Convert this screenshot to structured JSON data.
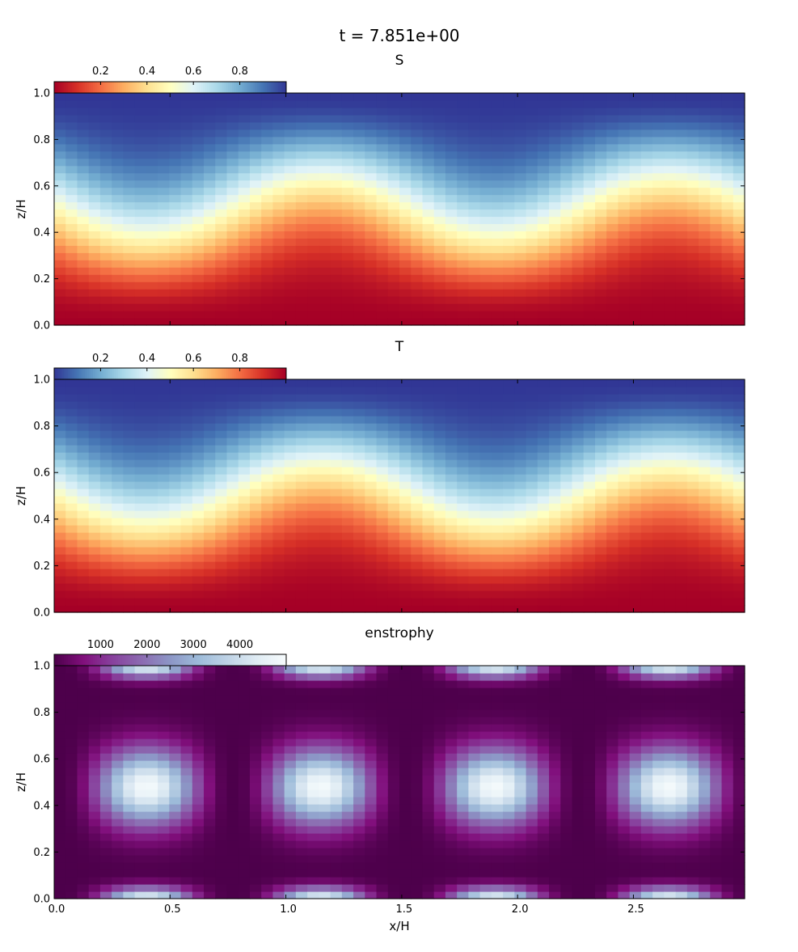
{
  "figure": {
    "suptitle": "t = 7.851e+00"
  },
  "chart_data": [
    {
      "type": "heatmap",
      "title": "S",
      "xlabel": "",
      "ylabel": "z/H",
      "xlim": [
        0,
        2.98
      ],
      "ylim": [
        0,
        1
      ],
      "field": "S",
      "colormap": "RdYlBu",
      "colormap_colors": [
        "#a50026",
        "#d73027",
        "#f46d43",
        "#fdae61",
        "#fee090",
        "#ffffbf",
        "#e0f3f8",
        "#abd9e9",
        "#74add1",
        "#4575b4",
        "#313695"
      ],
      "value_range": [
        0,
        1
      ],
      "grid_nx": 60,
      "grid_nz": 32,
      "flow_model": {
        "wavelength_x": 1.5,
        "phase_x": 0.4,
        "amplitude": 0.13
      },
      "colorbar": {
        "ticks": [
          0.2,
          0.4,
          0.6,
          0.8
        ],
        "tick_labels": [
          "0.2",
          "0.4",
          "0.6",
          "0.8"
        ],
        "range": [
          0,
          1
        ]
      },
      "yticks": [
        0,
        0.2,
        0.4,
        0.6,
        0.8,
        1.0
      ],
      "ytick_labels": [
        "0.0",
        "0.2",
        "0.4",
        "0.6",
        "0.8",
        "1.0"
      ],
      "xticks": [
        0,
        0.5,
        1.0,
        1.5,
        2.0,
        2.5
      ],
      "xtick_labels": []
    },
    {
      "type": "heatmap",
      "title": "T",
      "xlabel": "",
      "ylabel": "z/H",
      "xlim": [
        0,
        2.98
      ],
      "ylim": [
        0,
        1
      ],
      "field": "T",
      "colormap": "RdYlBu_r",
      "colormap_colors": [
        "#313695",
        "#4575b4",
        "#74add1",
        "#abd9e9",
        "#e0f3f8",
        "#ffffbf",
        "#fee090",
        "#fdae61",
        "#f46d43",
        "#d73027",
        "#a50026"
      ],
      "value_range": [
        0,
        1
      ],
      "grid_nx": 60,
      "grid_nz": 32,
      "flow_model": {
        "wavelength_x": 1.5,
        "phase_x": 0.4,
        "amplitude": 0.13
      },
      "colorbar": {
        "ticks": [
          0.2,
          0.4,
          0.6,
          0.8
        ],
        "tick_labels": [
          "0.2",
          "0.4",
          "0.6",
          "0.8"
        ],
        "range": [
          0,
          1
        ]
      },
      "yticks": [
        0,
        0.2,
        0.4,
        0.6,
        0.8,
        1.0
      ],
      "ytick_labels": [
        "0.0",
        "0.2",
        "0.4",
        "0.6",
        "0.8",
        "1.0"
      ],
      "xticks": [
        0,
        0.5,
        1.0,
        1.5,
        2.0,
        2.5
      ],
      "xtick_labels": []
    },
    {
      "type": "heatmap",
      "title": "enstrophy",
      "xlabel": "x/H",
      "ylabel": "z/H",
      "xlim": [
        0,
        2.98
      ],
      "ylim": [
        0,
        1
      ],
      "field": "enstrophy",
      "colormap": "BuPu_r",
      "colormap_colors": [
        "#4d004b",
        "#810f7c",
        "#88419d",
        "#8c6bb1",
        "#8c96c6",
        "#9ebcda",
        "#bfd3e6",
        "#e0ecf4",
        "#f7fcfd"
      ],
      "value_range": [
        0,
        5000
      ],
      "grid_nx": 60,
      "grid_nz": 32,
      "flow_model": {
        "wavelength_x": 1.5,
        "phase_x": 0.4,
        "cell_centers_x": [
          0.4,
          1.15,
          1.9,
          2.65
        ],
        "cell_center_z": 0.48,
        "peak": 5000
      },
      "colorbar": {
        "ticks": [
          1000,
          2000,
          3000,
          4000
        ],
        "tick_labels": [
          "1000",
          "2000",
          "3000",
          "4000"
        ],
        "range": [
          0,
          5000
        ]
      },
      "yticks": [
        0,
        0.2,
        0.4,
        0.6,
        0.8,
        1.0
      ],
      "ytick_labels": [
        "0.0",
        "0.2",
        "0.4",
        "0.6",
        "0.8",
        "1.0"
      ],
      "xticks": [
        0,
        0.5,
        1.0,
        1.5,
        2.0,
        2.5
      ],
      "xtick_labels": [
        "0.0",
        "0.5",
        "1.0",
        "1.5",
        "2.0",
        "2.5"
      ]
    }
  ]
}
